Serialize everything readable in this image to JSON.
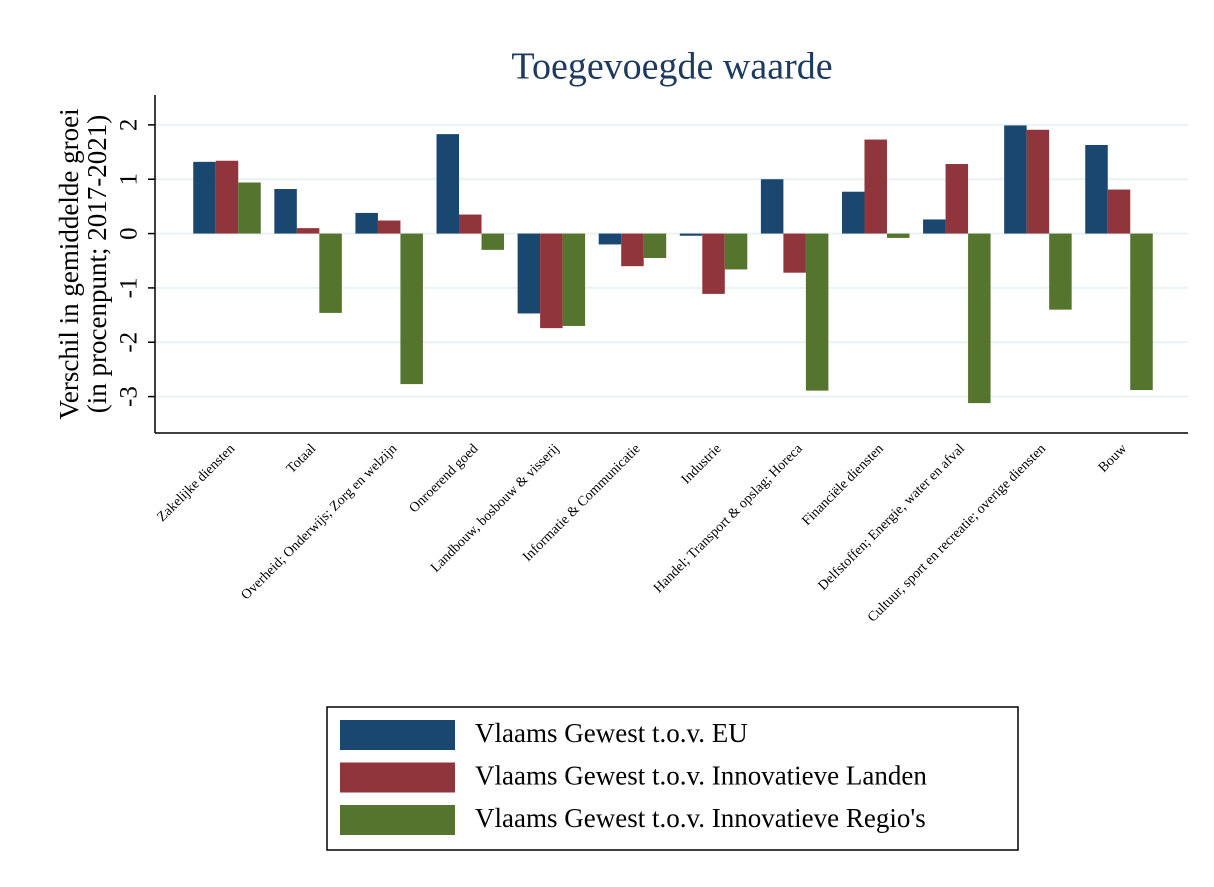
{
  "chart_data": {
    "type": "bar",
    "title": "Toegevoegde waarde",
    "ylabel": [
      "Verschil in gemiddelde groei",
      "(in procenpunt; 2017-2021)"
    ],
    "categories": [
      "Zakelijke diensten",
      "Totaal",
      "Overheid; Onderwijs; Zorg en welzijn",
      "Onroerend goed",
      "Landbouw, bosbouw & visserij",
      "Informatie & Communicatie",
      "Industrie",
      "Handel; Transport & opslag; Horeca",
      "Financiële diensten",
      "Delfstoffen; Energie, water en afval",
      "Cultuur, sport en recreatie; overige diensten",
      "Bouw"
    ],
    "series": [
      {
        "name": "Vlaams Gewest t.o.v. EU",
        "color": "#1a476f",
        "values": [
          1.32,
          0.82,
          0.38,
          1.83,
          -1.47,
          -0.2,
          -0.04,
          1.0,
          0.77,
          0.26,
          1.99,
          1.63
        ]
      },
      {
        "name": "Vlaams Gewest t.o.v. Innovatieve Landen",
        "color": "#90353b",
        "values": [
          1.34,
          0.1,
          0.24,
          0.35,
          -1.74,
          -0.6,
          -1.11,
          -0.72,
          1.73,
          1.28,
          1.91,
          0.81
        ]
      },
      {
        "name": "Vlaams Gewest t.o.v. Innovatieve Regio's",
        "color": "#55752f",
        "values": [
          0.94,
          -1.46,
          -2.77,
          -0.3,
          -1.7,
          -0.45,
          -0.66,
          -2.89,
          -0.08,
          -3.12,
          -1.4,
          -2.88
        ]
      }
    ],
    "ylim": [
      -3.67,
      2.55
    ],
    "yticks": [
      -3,
      -2,
      -1,
      0,
      1,
      2
    ],
    "grid": true
  }
}
